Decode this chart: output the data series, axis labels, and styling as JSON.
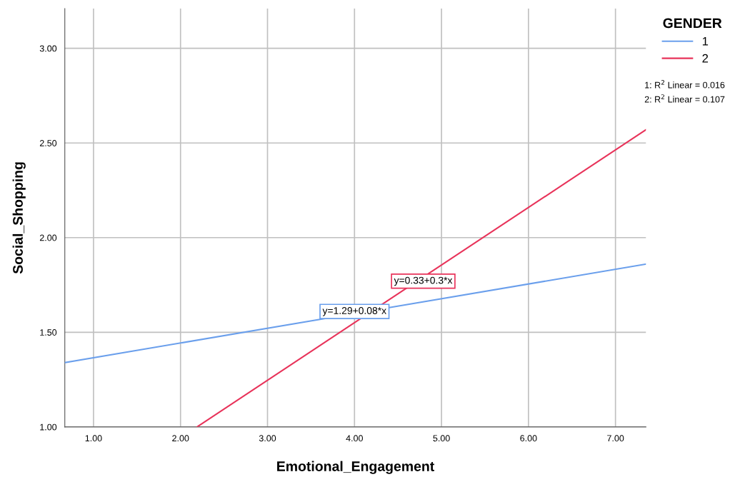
{
  "chart_data": {
    "type": "line",
    "xlabel": "Emotional_Engagement",
    "ylabel": "Social_Shopping",
    "legend_title": "GENDER",
    "legend": "top right",
    "grid": true,
    "marker": "none",
    "line_style": "solid",
    "xlim": [
      0.67,
      7.35
    ],
    "ylim": [
      1.0,
      3.21
    ],
    "xticks": [
      {
        "value": 1,
        "label": "1.00"
      },
      {
        "value": 2,
        "label": "2.00"
      },
      {
        "value": 3,
        "label": "3.00"
      },
      {
        "value": 4,
        "label": "4.00"
      },
      {
        "value": 5,
        "label": "5.00"
      },
      {
        "value": 6,
        "label": "6.00"
      },
      {
        "value": 7,
        "label": "7.00"
      }
    ],
    "yticks": [
      {
        "value": 1,
        "label": "1.00"
      },
      {
        "value": 1.5,
        "label": "1.50"
      },
      {
        "value": 2,
        "label": "2.00"
      },
      {
        "value": 2.5,
        "label": "2.50"
      },
      {
        "value": 3,
        "label": "3.00"
      }
    ],
    "series": [
      {
        "name": "1",
        "color": "#6a9fec",
        "x": [
          0.67,
          7.35
        ],
        "values": [
          1.34,
          1.86
        ]
      },
      {
        "name": "2",
        "color": "#e8335a",
        "x": [
          2.19,
          7.35
        ],
        "values": [
          1.0,
          2.57
        ]
      }
    ],
    "annotations": [
      {
        "text": "y=1.29+0.08*x",
        "x": 4.0,
        "y": 1.61
      },
      {
        "text": "y=0.33+0.3*x",
        "x": 4.79,
        "y": 1.77
      },
      "1: R$^{2}$ Linear = 0.016",
      "2: R$^{2}$ Linear = 0.107"
    ]
  }
}
